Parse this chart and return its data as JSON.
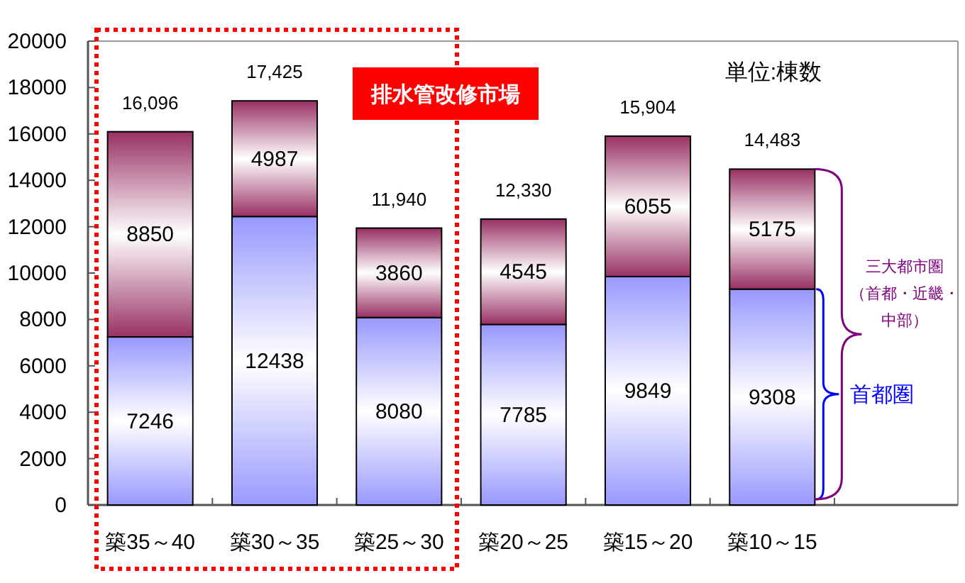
{
  "chart_data": {
    "type": "bar",
    "stacked": true,
    "categories": [
      "築35～40",
      "築30～35",
      "築25～30",
      "築20～25",
      "築15～20",
      "築10～15"
    ],
    "series": [
      {
        "name": "首都圏",
        "color": "#9999ff",
        "values": [
          7246,
          12438,
          8080,
          7785,
          9849,
          9308
        ]
      },
      {
        "color": "#993366",
        "values": [
          8850,
          4987,
          3860,
          4545,
          6055,
          5175
        ]
      }
    ],
    "ylim": [
      0,
      20000
    ],
    "yticks": [
      0,
      2000,
      4000,
      6000,
      8000,
      10000,
      12000,
      14000,
      16000,
      18000,
      20000
    ],
    "data_labels": true,
    "totals": [
      "16,096",
      "17,425",
      "11,940",
      "12,330",
      "15,904",
      "14,483"
    ],
    "annotations": [
      "排水管改修市場",
      "単位:棟数",
      "三大都市圏（首都・近畿・中部）"
    ]
  }
}
